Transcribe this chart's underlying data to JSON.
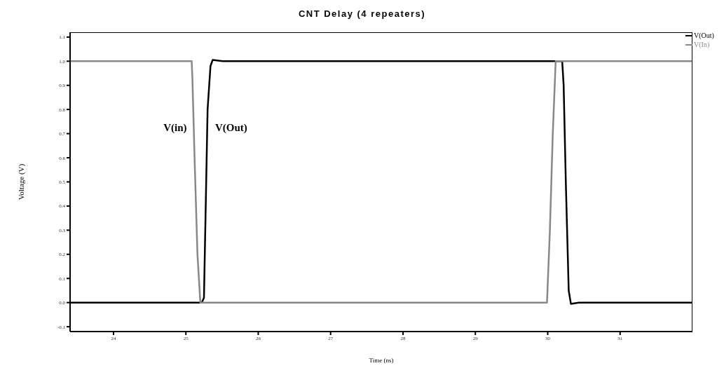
{
  "chart_data": {
    "type": "line",
    "title": "CNT Delay (4 repeaters)",
    "xlabel": "Time (ns)",
    "ylabel": "Voltage (V)",
    "xlim": [
      23.4,
      32.0
    ],
    "xticks": [
      24,
      25,
      26,
      27,
      28,
      29,
      30,
      31
    ],
    "ylim": [
      -0.12,
      1.12
    ],
    "yticks": [
      -0.1,
      {
        "value": 0,
        "label": "0.0"
      },
      0.1,
      0.2,
      0.3,
      0.4,
      0.5,
      0.6,
      0.7,
      0.8,
      0.9,
      {
        "value": 1,
        "label": "1.0"
      },
      1.1
    ],
    "legend": "top right",
    "marker": "none",
    "line_style": "solid",
    "series": [
      {
        "name": "V(Out)",
        "color": "#000000",
        "x": [
          23.4,
          25.22,
          25.25,
          25.3,
          25.34,
          25.37,
          25.51,
          26.0,
          30.2,
          30.22,
          30.25,
          30.29,
          30.32,
          30.43,
          32.0
        ],
        "values": [
          0,
          0,
          0.02,
          0.8,
          0.98,
          1.005,
          1.0,
          1.0,
          1.0,
          0.9,
          0.5,
          0.05,
          -0.005,
          0,
          0
        ]
      },
      {
        "name": "V(In)",
        "color": "#888888",
        "x": [
          23.4,
          25.08,
          25.09,
          25.12,
          25.16,
          25.2,
          29.99,
          30.03,
          30.07,
          30.11,
          32.0
        ],
        "values": [
          1.0,
          1.0,
          0.93,
          0.6,
          0.2,
          0,
          0,
          0.3,
          0.7,
          1.0,
          1.0
        ]
      }
    ],
    "annotations": [
      "V(in)",
      "V(Out)"
    ]
  }
}
